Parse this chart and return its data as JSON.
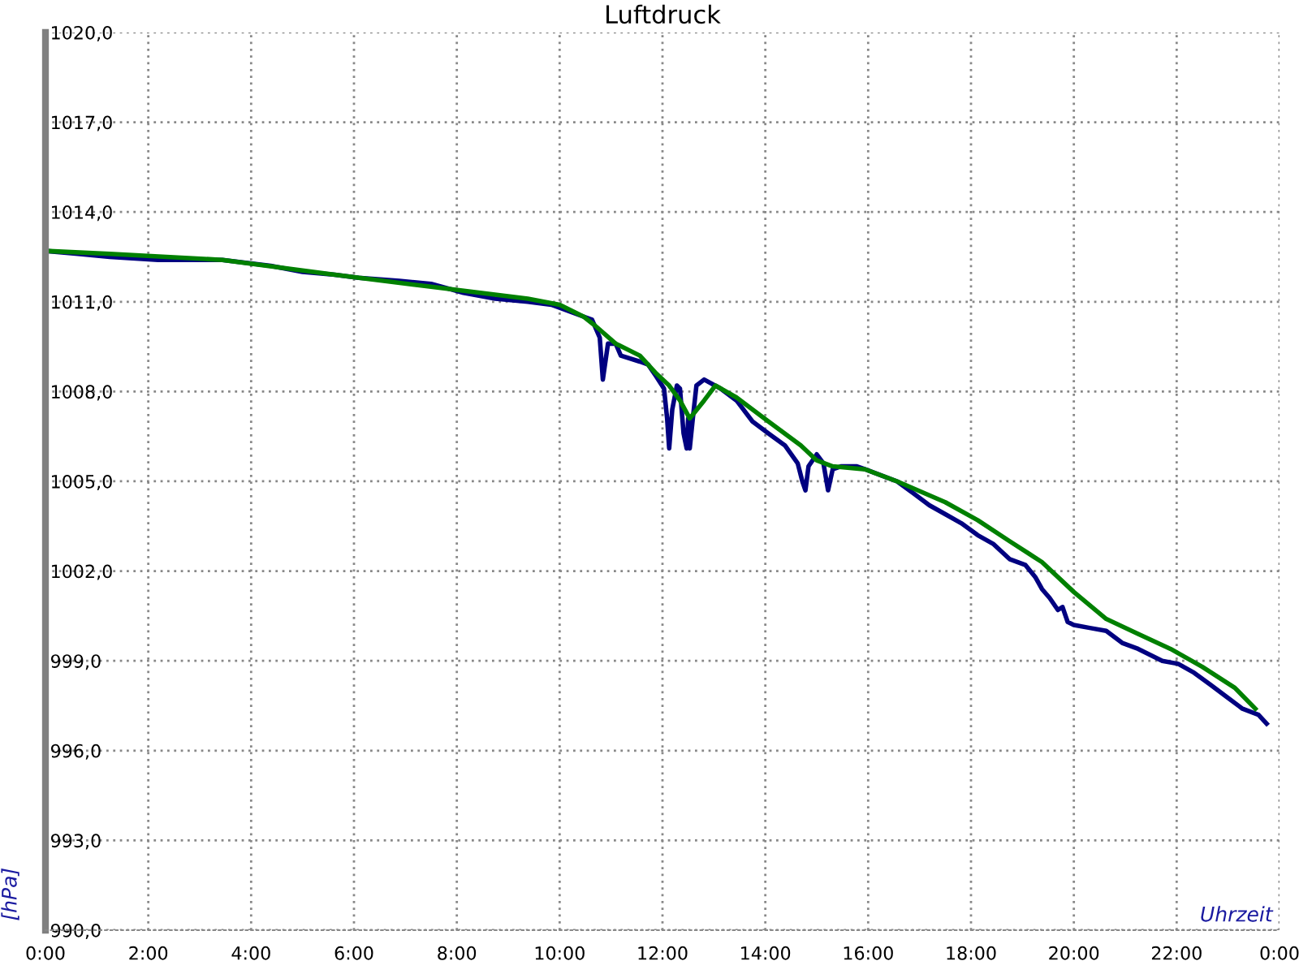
{
  "chart_data": {
    "type": "line",
    "title": "Luftdruck",
    "xlabel": "Uhrzeit",
    "ylabel": "[hPa]",
    "xlim": [
      0,
      24
    ],
    "ylim": [
      990,
      1020
    ],
    "xticks": [
      {
        "value": 0,
        "label": "0:00"
      },
      {
        "value": 2,
        "label": "2:00"
      },
      {
        "value": 4,
        "label": "4:00"
      },
      {
        "value": 6,
        "label": "6:00"
      },
      {
        "value": 8,
        "label": "8:00"
      },
      {
        "value": 10,
        "label": "10:00"
      },
      {
        "value": 12,
        "label": "12:00"
      },
      {
        "value": 14,
        "label": "14:00"
      },
      {
        "value": 16,
        "label": "16:00"
      },
      {
        "value": 18,
        "label": "18:00"
      },
      {
        "value": 20,
        "label": "20:00"
      },
      {
        "value": 22,
        "label": "22:00"
      },
      {
        "value": 24,
        "label": "0:00"
      }
    ],
    "yticks": [
      {
        "value": 990,
        "label": "990,0"
      },
      {
        "value": 993,
        "label": "993,0"
      },
      {
        "value": 996,
        "label": "996,0"
      },
      {
        "value": 999,
        "label": "999,0"
      },
      {
        "value": 1002,
        "label": "1002,0"
      },
      {
        "value": 1005,
        "label": "1005,0"
      },
      {
        "value": 1008,
        "label": "1008,0"
      },
      {
        "value": 1011,
        "label": "1011,0"
      },
      {
        "value": 1014,
        "label": "1014,0"
      },
      {
        "value": 1017,
        "label": "1017,0"
      },
      {
        "value": 1020,
        "label": "1020,0"
      }
    ],
    "grid": true,
    "legend": false,
    "marker": "none",
    "line_style": "solid",
    "series": [
      {
        "color": "#000080",
        "x": [
          0,
          0.63,
          1.25,
          2.19,
          3.44,
          4.38,
          5.0,
          5.63,
          6.09,
          6.88,
          7.5,
          8.13,
          8.75,
          9.38,
          9.84,
          10.31,
          10.63,
          10.78,
          10.84,
          10.94,
          11.09,
          11.19,
          11.56,
          11.72,
          11.88,
          12.03,
          12.09,
          12.13,
          12.19,
          12.28,
          12.34,
          12.41,
          12.47,
          12.5,
          12.53,
          12.59,
          12.66,
          12.81,
          13.13,
          13.44,
          13.75,
          14.06,
          14.38,
          14.63,
          14.72,
          14.78,
          14.84,
          15.0,
          15.13,
          15.22,
          15.31,
          15.47,
          15.78,
          15.94,
          16.25,
          16.56,
          16.88,
          17.19,
          17.5,
          17.81,
          18.13,
          18.44,
          18.75,
          19.06,
          19.25,
          19.38,
          19.53,
          19.69,
          19.78,
          19.88,
          20.0,
          20.31,
          20.63,
          20.94,
          21.25,
          21.72,
          22.03,
          22.34,
          22.66,
          22.97,
          23.28,
          23.59,
          23.75
        ],
        "values": [
          1012.7,
          1012.6,
          1012.5,
          1012.4,
          1012.4,
          1012.2,
          1012.0,
          1011.9,
          1011.8,
          1011.7,
          1011.6,
          1011.3,
          1011.1,
          1011.0,
          1010.9,
          1010.6,
          1010.4,
          1009.8,
          1008.4,
          1009.6,
          1009.6,
          1009.2,
          1009.0,
          1008.9,
          1008.5,
          1008.1,
          1007.1,
          1006.1,
          1007.4,
          1008.2,
          1008.1,
          1006.6,
          1006.1,
          1007.1,
          1006.1,
          1007.1,
          1008.2,
          1008.4,
          1008.1,
          1007.7,
          1007.0,
          1006.6,
          1006.2,
          1005.6,
          1005.0,
          1004.7,
          1005.5,
          1005.9,
          1005.6,
          1004.7,
          1005.4,
          1005.5,
          1005.5,
          1005.4,
          1005.2,
          1005.0,
          1004.6,
          1004.2,
          1003.9,
          1003.6,
          1003.2,
          1002.9,
          1002.4,
          1002.2,
          1001.8,
          1001.4,
          1001.1,
          1000.7,
          1000.8,
          1000.3,
          1000.2,
          1000.1,
          1000.0,
          999.6,
          999.4,
          999.0,
          998.9,
          998.6,
          998.2,
          997.8,
          997.4,
          997.2,
          996.9
        ]
      },
      {
        "color": "#008000",
        "x": [
          0,
          1.25,
          3.44,
          5.63,
          7.5,
          9.38,
          10.0,
          10.47,
          10.69,
          11.09,
          11.56,
          11.88,
          12.13,
          12.34,
          12.53,
          12.81,
          13.03,
          13.44,
          14.06,
          14.69,
          15.0,
          15.31,
          15.94,
          16.56,
          17.5,
          18.13,
          18.75,
          19.38,
          20.0,
          20.63,
          21.25,
          21.88,
          22.5,
          23.13,
          23.53
        ],
        "values": [
          1012.7,
          1012.6,
          1012.4,
          1011.9,
          1011.5,
          1011.1,
          1010.9,
          1010.5,
          1010.2,
          1009.6,
          1009.2,
          1008.6,
          1008.2,
          1007.7,
          1007.1,
          1007.7,
          1008.2,
          1007.8,
          1007.0,
          1006.2,
          1005.7,
          1005.5,
          1005.4,
          1005.0,
          1004.3,
          1003.7,
          1003.0,
          1002.3,
          1001.3,
          1000.4,
          999.9,
          999.4,
          998.8,
          998.1,
          997.4
        ]
      }
    ]
  }
}
